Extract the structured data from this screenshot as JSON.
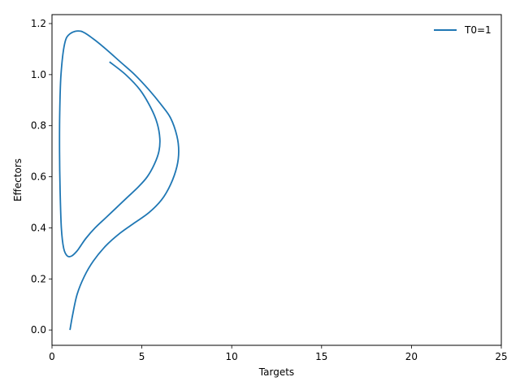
{
  "chart_data": {
    "type": "line",
    "title": "",
    "xlabel": "Targets",
    "ylabel": "Effectors",
    "xlim": [
      0,
      25
    ],
    "ylim": [
      -0.06,
      1.235
    ],
    "xticks": [
      0,
      5,
      10,
      15,
      20,
      25
    ],
    "yticks": [
      0.0,
      0.2,
      0.4,
      0.6,
      0.8,
      1.0,
      1.2
    ],
    "xtick_labels": [
      "0",
      "5",
      "10",
      "15",
      "20",
      "25"
    ],
    "ytick_labels": [
      "0.0",
      "0.2",
      "0.4",
      "0.6",
      "0.8",
      "1.0",
      "1.2"
    ],
    "grid": false,
    "legend_position": "top-right",
    "series": [
      {
        "name": "T0=1",
        "color": "#1f77b4",
        "x": [
          1.0,
          1.15,
          1.4,
          1.8,
          2.3,
          3.0,
          3.8,
          4.6,
          5.4,
          6.1,
          6.6,
          6.95,
          7.05,
          6.95,
          6.6,
          6.1,
          5.4,
          4.6,
          3.8,
          3.0,
          2.3,
          1.6,
          1.0,
          0.7,
          0.5,
          0.43,
          0.42,
          0.45,
          0.52,
          0.65,
          0.85,
          1.1,
          1.4,
          1.6,
          1.9,
          2.4,
          3.0,
          3.6,
          4.2,
          4.8,
          5.3,
          5.7,
          5.95,
          6.0,
          5.85,
          5.5,
          4.9,
          4.1,
          3.2
        ],
        "y": [
          0.0,
          0.06,
          0.14,
          0.21,
          0.27,
          0.33,
          0.38,
          0.42,
          0.46,
          0.51,
          0.57,
          0.64,
          0.7,
          0.76,
          0.83,
          0.88,
          0.94,
          1.0,
          1.05,
          1.1,
          1.14,
          1.17,
          1.16,
          1.12,
          1.0,
          0.85,
          0.7,
          0.55,
          0.4,
          0.32,
          0.29,
          0.29,
          0.31,
          0.33,
          0.36,
          0.4,
          0.44,
          0.48,
          0.52,
          0.56,
          0.6,
          0.65,
          0.7,
          0.75,
          0.81,
          0.87,
          0.94,
          1.0,
          1.05
        ]
      }
    ]
  }
}
